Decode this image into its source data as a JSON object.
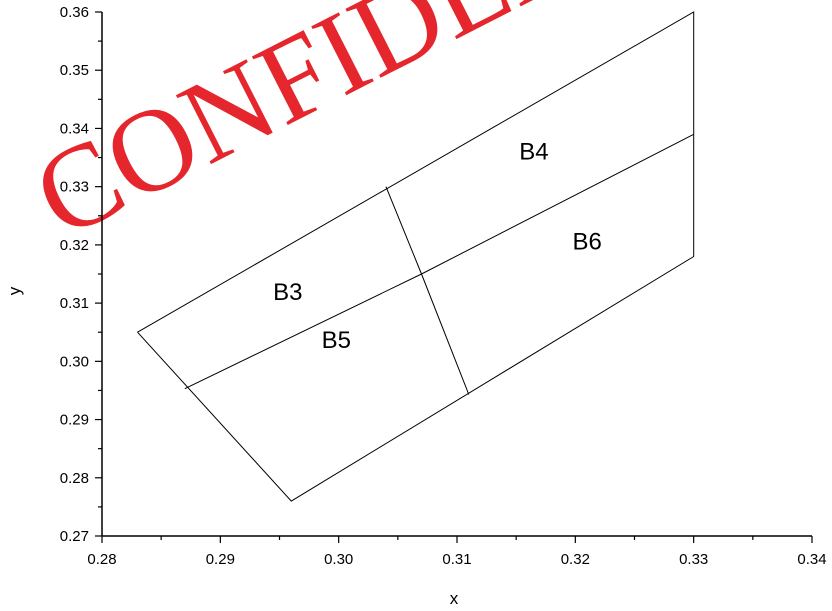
{
  "watermark": "CONFIDENTIAL",
  "watermark_color": "#e3141b",
  "chart_data": {
    "type": "line",
    "title": "",
    "xlabel": "x",
    "ylabel": "y",
    "xlim": [
      0.28,
      0.34
    ],
    "ylim": [
      0.27,
      0.36
    ],
    "xticks": [
      0.28,
      0.29,
      0.3,
      0.31,
      0.32,
      0.33,
      0.34
    ],
    "xtick_labels": [
      "0.28",
      "0.29",
      "0.30",
      "0.31",
      "0.32",
      "0.33",
      "0.34"
    ],
    "yticks": [
      0.27,
      0.28,
      0.29,
      0.3,
      0.31,
      0.32,
      0.33,
      0.34,
      0.35,
      0.36
    ],
    "ytick_labels": [
      "0.27",
      "0.28",
      "0.29",
      "0.30",
      "0.31",
      "0.32",
      "0.33",
      "0.34",
      "0.35",
      "0.36"
    ],
    "grid": false,
    "series": [
      {
        "x": [
          0.283,
          0.33,
          0.33,
          0.296,
          0.283
        ],
        "y": [
          0.305,
          0.36,
          0.318,
          0.276,
          0.305
        ]
      },
      {
        "x": [
          0.287,
          0.307,
          0.33
        ],
        "y": [
          0.2953,
          0.315,
          0.339
        ]
      },
      {
        "x": [
          0.304,
          0.307,
          0.311
        ],
        "y": [
          0.33,
          0.315,
          0.2943
        ]
      }
    ],
    "annotations": [
      {
        "text": "B3",
        "x": 0.2957,
        "y": 0.3105
      },
      {
        "text": "B4",
        "x": 0.3165,
        "y": 0.3347
      },
      {
        "text": "B5",
        "x": 0.2998,
        "y": 0.3023
      },
      {
        "text": "B6",
        "x": 0.321,
        "y": 0.3192
      }
    ]
  }
}
